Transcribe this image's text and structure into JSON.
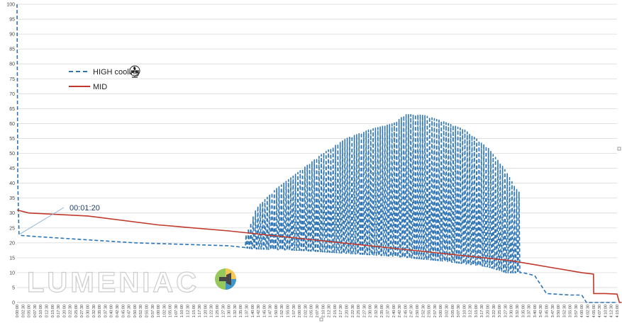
{
  "chart_data": {
    "type": "line",
    "title": "",
    "xlabel": "",
    "ylabel": "",
    "ylim": [
      0,
      100
    ],
    "y_ticks": [
      0,
      5,
      10,
      15,
      20,
      25,
      30,
      35,
      40,
      45,
      50,
      55,
      60,
      65,
      70,
      75,
      80,
      85,
      90,
      95,
      100
    ],
    "x_range_seconds": [
      0,
      15300
    ],
    "x_tick_step_seconds": 150,
    "grid": "horizontal",
    "legend_position": "left",
    "series": [
      {
        "name": "HIGH cooling",
        "color": "#2e75b6",
        "style": "dashed",
        "baseline_points": [
          [
            "0:00:00",
            100
          ],
          [
            "0:00:20",
            40
          ],
          [
            "0:00:50",
            23
          ],
          [
            "0:01:20",
            22.5
          ],
          [
            "0:10:00",
            22
          ],
          [
            "0:30:00",
            21
          ],
          [
            "0:50:00",
            20
          ],
          [
            "1:10:00",
            19.5
          ],
          [
            "1:30:00",
            19
          ],
          [
            "1:36:00",
            18.5
          ],
          [
            "1:40:00",
            18
          ],
          [
            "2:00:00",
            17.5
          ],
          [
            "2:20:00",
            16.5
          ],
          [
            "2:40:00",
            15.5
          ],
          [
            "3:00:00",
            14
          ],
          [
            "3:20:00",
            12
          ],
          [
            "3:28:00",
            10
          ],
          [
            "3:35:00",
            10
          ],
          [
            "3:40:00",
            9
          ],
          [
            "3:45:00",
            3
          ],
          [
            "3:55:00",
            2.5
          ],
          [
            "4:00:00",
            2.5
          ],
          [
            "4:02:00",
            0
          ],
          [
            "4:15:00",
            0
          ]
        ],
        "peak_points": [
          [
            "1:37:00",
            22
          ],
          [
            "1:42:00",
            32
          ],
          [
            "1:50:00",
            38
          ],
          [
            "2:00:00",
            44
          ],
          [
            "2:10:00",
            50
          ],
          [
            "2:20:00",
            55
          ],
          [
            "2:30:00",
            58
          ],
          [
            "2:40:00",
            60
          ],
          [
            "2:45:00",
            63
          ],
          [
            "2:52:00",
            63
          ],
          [
            "3:00:00",
            61
          ],
          [
            "3:10:00",
            58
          ],
          [
            "3:20:00",
            52
          ],
          [
            "3:27:00",
            45
          ],
          [
            "3:33:00",
            37
          ]
        ],
        "oscillation_region": [
          "1:37:00",
          "3:33:00"
        ],
        "oscillation_period_seconds": 60
      },
      {
        "name": "MID",
        "color": "#c0392b",
        "style": "solid",
        "points": [
          [
            "0:00:00",
            31
          ],
          [
            "0:05:00",
            30
          ],
          [
            "0:30:00",
            29
          ],
          [
            "1:00:00",
            26
          ],
          [
            "1:30:00",
            24
          ],
          [
            "2:00:00",
            21.5
          ],
          [
            "2:30:00",
            19
          ],
          [
            "3:00:00",
            16.5
          ],
          [
            "3:30:00",
            14
          ],
          [
            "3:45:00",
            12
          ],
          [
            "4:00:00",
            10
          ],
          [
            "4:05:00",
            9.5
          ],
          [
            "4:05:05",
            3
          ],
          [
            "4:10:00",
            3
          ],
          [
            "4:15:00",
            2.8
          ],
          [
            "4:16:00",
            0
          ],
          [
            "4:17:00",
            0
          ]
        ]
      }
    ],
    "annotation": {
      "text": "00:01:20",
      "target": [
        "0:01:20",
        22.5
      ]
    }
  },
  "watermark": {
    "text": "LUMENIAC",
    "logo_icon": "lumeniac-logo-icon"
  },
  "legend_icon": "fan-icon"
}
